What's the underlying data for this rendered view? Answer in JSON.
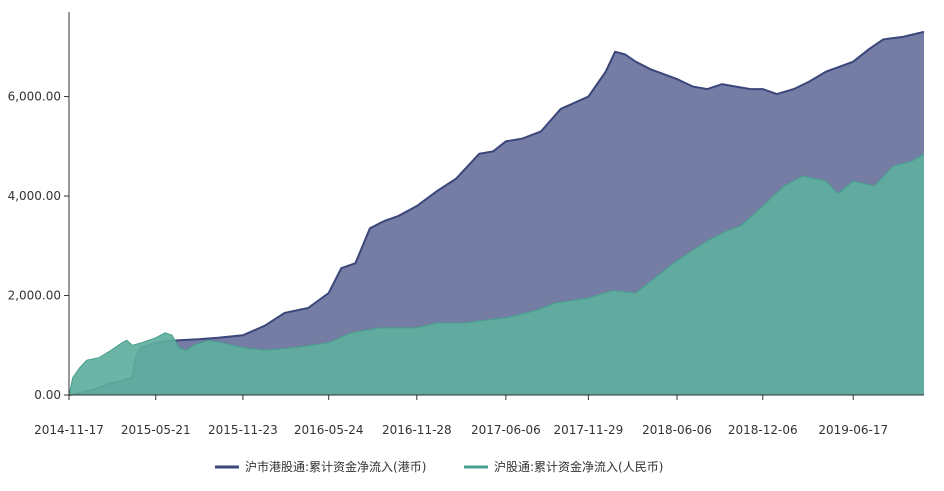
{
  "chart_data": {
    "type": "area",
    "x_ticks": [
      "2014-11-17",
      "2015-05-21",
      "2015-11-23",
      "2016-05-24",
      "2016-11-28",
      "2017-06-06",
      "2017-11-29",
      "2018-06-06",
      "2018-12-06",
      "2019-06-17"
    ],
    "y_ticks": [
      "0.00",
      "2,000.00",
      "4,000.00",
      "6,000.00"
    ],
    "ylim": [
      0,
      7200
    ],
    "grid": false,
    "legend_position": "bottom",
    "series": [
      {
        "name": "沪市港股通:累计资金净流入(港币)",
        "color": "#3b467a",
        "fill": "#757da4",
        "points": [
          [
            "2014-11-17",
            0
          ],
          [
            "2014-12-15",
            50
          ],
          [
            "2015-01-15",
            130
          ],
          [
            "2015-02-10",
            230
          ],
          [
            "2015-03-05",
            270
          ],
          [
            "2015-04-01",
            350
          ],
          [
            "2015-04-08",
            750
          ],
          [
            "2015-04-20",
            950
          ],
          [
            "2015-05-21",
            1050
          ],
          [
            "2015-06-10",
            1080
          ],
          [
            "2015-07-10",
            1100
          ],
          [
            "2015-08-20",
            1120
          ],
          [
            "2015-10-01",
            1150
          ],
          [
            "2015-11-23",
            1200
          ],
          [
            "2016-01-10",
            1400
          ],
          [
            "2016-02-20",
            1650
          ],
          [
            "2016-04-10",
            1750
          ],
          [
            "2016-05-24",
            2050
          ],
          [
            "2016-06-20",
            2550
          ],
          [
            "2016-07-20",
            2650
          ],
          [
            "2016-08-20",
            3350
          ],
          [
            "2016-09-20",
            3500
          ],
          [
            "2016-10-20",
            3600
          ],
          [
            "2016-11-28",
            3800
          ],
          [
            "2017-01-10",
            4100
          ],
          [
            "2017-02-20",
            4350
          ],
          [
            "2017-04-10",
            4850
          ],
          [
            "2017-05-10",
            4900
          ],
          [
            "2017-06-06",
            5100
          ],
          [
            "2017-07-10",
            5150
          ],
          [
            "2017-08-20",
            5300
          ],
          [
            "2017-10-01",
            5750
          ],
          [
            "2017-11-29",
            6000
          ],
          [
            "2018-01-05",
            6500
          ],
          [
            "2018-01-25",
            6900
          ],
          [
            "2018-02-15",
            6850
          ],
          [
            "2018-03-10",
            6700
          ],
          [
            "2018-04-10",
            6550
          ],
          [
            "2018-06-06",
            6350
          ],
          [
            "2018-07-10",
            6200
          ],
          [
            "2018-08-10",
            6150
          ],
          [
            "2018-09-10",
            6250
          ],
          [
            "2018-10-10",
            6200
          ],
          [
            "2018-11-10",
            6150
          ],
          [
            "2018-12-06",
            6150
          ],
          [
            "2019-01-05",
            6050
          ],
          [
            "2019-02-10",
            6150
          ],
          [
            "2019-03-15",
            6300
          ],
          [
            "2019-04-20",
            6500
          ],
          [
            "2019-06-17",
            6700
          ],
          [
            "2019-07-20",
            6950
          ],
          [
            "2019-08-20",
            7150
          ],
          [
            "2019-10-01",
            7200
          ],
          [
            "2019-11-15",
            7300
          ]
        ]
      },
      {
        "name": "沪股通:累计资金净流入(人民币)",
        "color": "#44a08c",
        "fill": "#5fae9e",
        "points": [
          [
            "2014-11-17",
            0
          ],
          [
            "2014-11-25",
            350
          ],
          [
            "2014-12-10",
            550
          ],
          [
            "2014-12-25",
            700
          ],
          [
            "2015-01-20",
            750
          ],
          [
            "2015-02-15",
            900
          ],
          [
            "2015-03-10",
            1050
          ],
          [
            "2015-03-20",
            1100
          ],
          [
            "2015-04-01",
            1000
          ],
          [
            "2015-04-20",
            1050
          ],
          [
            "2015-05-21",
            1150
          ],
          [
            "2015-06-10",
            1250
          ],
          [
            "2015-06-25",
            1200
          ],
          [
            "2015-07-10",
            950
          ],
          [
            "2015-07-25",
            900
          ],
          [
            "2015-08-10",
            1000
          ],
          [
            "2015-09-10",
            1100
          ],
          [
            "2015-10-10",
            1050
          ],
          [
            "2015-11-23",
            950
          ],
          [
            "2016-01-10",
            900
          ],
          [
            "2016-03-10",
            950
          ],
          [
            "2016-05-24",
            1050
          ],
          [
            "2016-07-10",
            1250
          ],
          [
            "2016-09-10",
            1350
          ],
          [
            "2016-11-28",
            1350
          ],
          [
            "2017-01-10",
            1450
          ],
          [
            "2017-03-10",
            1450
          ],
          [
            "2017-04-20",
            1500
          ],
          [
            "2017-06-06",
            1550
          ],
          [
            "2017-08-10",
            1700
          ],
          [
            "2017-09-20",
            1850
          ],
          [
            "2017-11-29",
            1950
          ],
          [
            "2018-01-20",
            2100
          ],
          [
            "2018-03-10",
            2050
          ],
          [
            "2018-05-10",
            2500
          ],
          [
            "2018-06-06",
            2700
          ],
          [
            "2018-08-10",
            3100
          ],
          [
            "2018-09-20",
            3300
          ],
          [
            "2018-10-20",
            3400
          ],
          [
            "2018-12-06",
            3800
          ],
          [
            "2019-01-20",
            4200
          ],
          [
            "2019-03-01",
            4400
          ],
          [
            "2019-04-20",
            4300
          ],
          [
            "2019-05-15",
            4050
          ],
          [
            "2019-06-17",
            4300
          ],
          [
            "2019-08-01",
            4200
          ],
          [
            "2019-09-10",
            4600
          ],
          [
            "2019-10-20",
            4700
          ],
          [
            "2019-11-15",
            4850
          ]
        ]
      }
    ]
  }
}
